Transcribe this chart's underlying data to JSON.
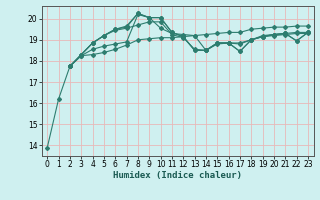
{
  "title": "",
  "xlabel": "Humidex (Indice chaleur)",
  "ylabel": "",
  "bg_color": "#cff0f0",
  "grid_color": "#e8b8b8",
  "line_color": "#2d7d6f",
  "xlim": [
    -0.5,
    23.5
  ],
  "ylim": [
    13.5,
    20.6
  ],
  "yticks": [
    14,
    15,
    16,
    17,
    18,
    19,
    20
  ],
  "xticks": [
    0,
    1,
    2,
    3,
    4,
    5,
    6,
    7,
    8,
    9,
    10,
    11,
    12,
    13,
    14,
    15,
    16,
    17,
    18,
    19,
    20,
    21,
    22,
    23
  ],
  "lines": [
    [
      0,
      13.9,
      1,
      16.2,
      2,
      17.75,
      3,
      18.25,
      4,
      18.3,
      5,
      18.4,
      6,
      18.55,
      7,
      18.75,
      8,
      19.0,
      9,
      19.05,
      10,
      19.1,
      11,
      19.1,
      12,
      19.15,
      13,
      19.2,
      14,
      19.25,
      15,
      19.3,
      16,
      19.35,
      17,
      19.35,
      18,
      19.5,
      19,
      19.55,
      20,
      19.6,
      21,
      19.6,
      22,
      19.65,
      23,
      19.65
    ],
    [
      2,
      17.75,
      3,
      18.25,
      4,
      18.55,
      5,
      18.7,
      6,
      18.8,
      7,
      18.9,
      8,
      20.2,
      9,
      20.05,
      10,
      19.55,
      11,
      19.3,
      12,
      19.25,
      13,
      19.2,
      14,
      18.5,
      15,
      18.8,
      16,
      18.85,
      17,
      18.85,
      18,
      19.0,
      19,
      19.2,
      20,
      19.25,
      21,
      19.3,
      22,
      19.35,
      23,
      19.35
    ],
    [
      2,
      17.75,
      3,
      18.3,
      4,
      18.85,
      5,
      19.2,
      6,
      19.5,
      7,
      19.65,
      8,
      20.25,
      9,
      20.05,
      10,
      20.05,
      11,
      19.35,
      12,
      19.15,
      13,
      18.5,
      14,
      18.5,
      15,
      18.85,
      16,
      18.85,
      17,
      18.45,
      18,
      19.0,
      19,
      19.15,
      20,
      19.25,
      21,
      19.3,
      22,
      18.95,
      23,
      19.35
    ],
    [
      2,
      17.75,
      3,
      18.3,
      4,
      18.85,
      5,
      19.2,
      6,
      19.5,
      7,
      19.6,
      8,
      20.25,
      9,
      20.05,
      10,
      20.05,
      11,
      19.35,
      12,
      19.15,
      13,
      18.5,
      14,
      18.5,
      15,
      18.85,
      16,
      18.85,
      17,
      18.45,
      18,
      19.0,
      19,
      19.15,
      20,
      19.25,
      21,
      19.3,
      22,
      18.95,
      23,
      19.35
    ],
    [
      2,
      17.75,
      3,
      18.3,
      4,
      18.85,
      5,
      19.2,
      6,
      19.45,
      7,
      19.55,
      8,
      19.7,
      9,
      19.85,
      10,
      19.85,
      11,
      19.25,
      12,
      19.1,
      13,
      18.55,
      14,
      18.5,
      15,
      18.85,
      16,
      18.85,
      17,
      18.8,
      18,
      19.0,
      19,
      19.15,
      20,
      19.2,
      21,
      19.25,
      22,
      19.3,
      23,
      19.3
    ]
  ]
}
